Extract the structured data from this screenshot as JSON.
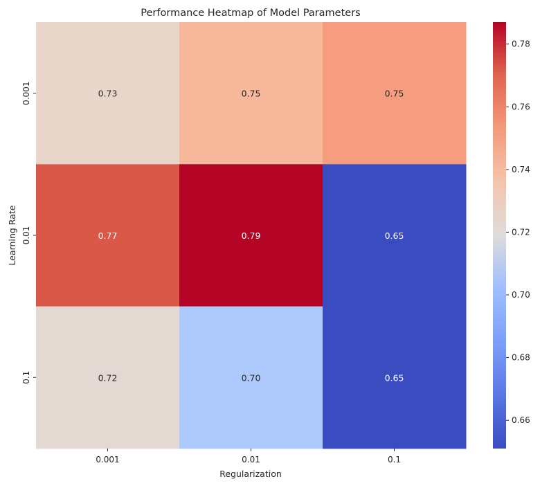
{
  "chart_data": {
    "type": "heatmap",
    "title": "Performance Heatmap of Model Parameters",
    "xlabel": "Regularization",
    "ylabel": "Learning Rate",
    "x_categories": [
      "0.001",
      "0.01",
      "0.1"
    ],
    "y_categories": [
      "0.001",
      "0.01",
      "0.1"
    ],
    "values": [
      [
        0.73,
        0.75,
        0.75
      ],
      [
        0.77,
        0.79,
        0.65
      ],
      [
        0.72,
        0.7,
        0.65
      ]
    ],
    "cell_colors": [
      [
        "#e8d6cb",
        "#f7b89c",
        "#f59d7e"
      ],
      [
        "#d95847",
        "#b40426",
        "#3b4cc0"
      ],
      [
        "#e4d9d2",
        "#aec9fc",
        "#3b4cc0"
      ]
    ],
    "label_colors": [
      [
        "#262626",
        "#262626",
        "#262626"
      ],
      [
        "#ffffff",
        "#ffffff",
        "#ffffff"
      ],
      [
        "#262626",
        "#262626",
        "#ffffff"
      ]
    ],
    "colormap": "coolwarm",
    "colorbar": {
      "range": [
        0.651,
        0.787
      ],
      "ticks": [
        0.66,
        0.68,
        0.7,
        0.72,
        0.74,
        0.76,
        0.78
      ],
      "tick_labels": [
        "0.66",
        "0.68",
        "0.70",
        "0.72",
        "0.74",
        "0.76",
        "0.78"
      ]
    }
  }
}
